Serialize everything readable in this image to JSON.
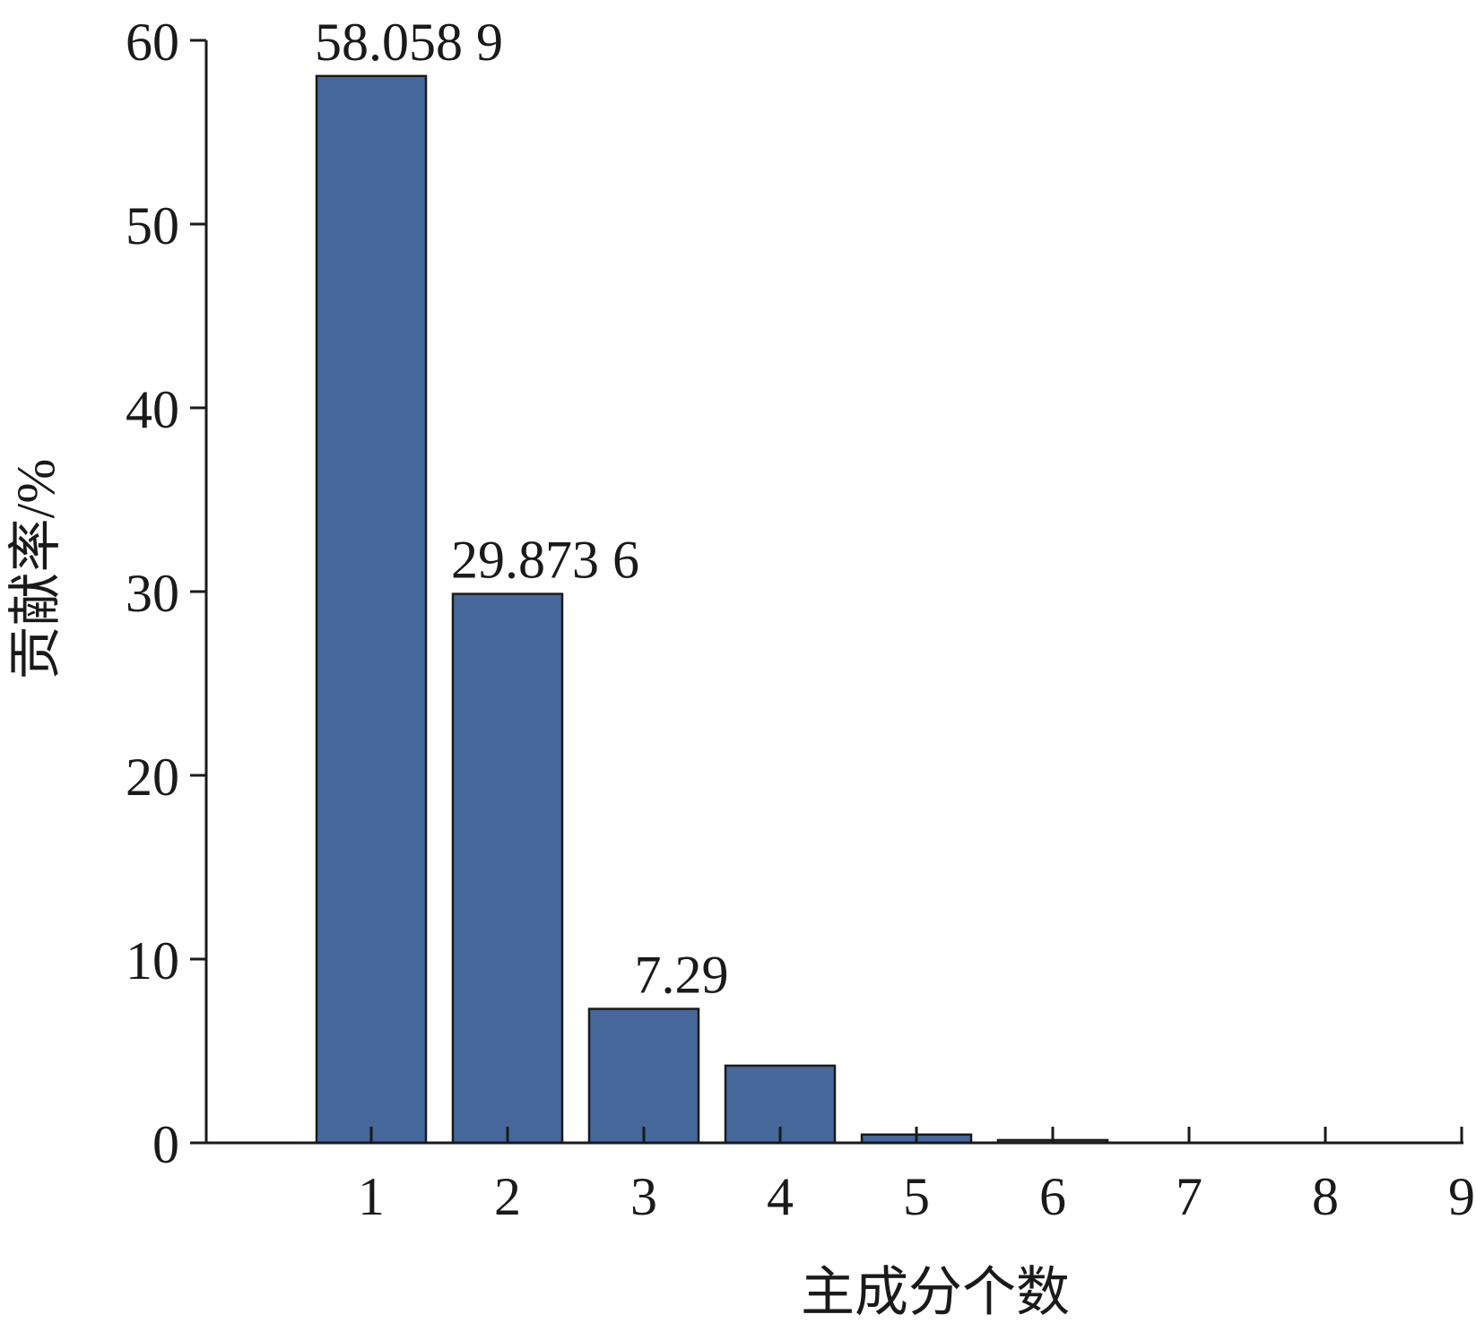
{
  "chart_data": {
    "type": "bar",
    "categories": [
      "1",
      "2",
      "3",
      "4",
      "5",
      "6",
      "7",
      "8",
      "9"
    ],
    "values": [
      58.0589,
      29.8736,
      7.29,
      4.2,
      0.45,
      0.15,
      0.0,
      0.0,
      0.0
    ],
    "data_labels": [
      "58.058 9",
      "29.873 6",
      "7.29",
      "",
      "",
      "",
      "",
      "",
      ""
    ],
    "xlabel": "主成分个数",
    "ylabel": "贡献率/%",
    "ylim": [
      0,
      60
    ],
    "yticks": [
      "0",
      "10",
      "20",
      "30",
      "40",
      "50",
      "60"
    ],
    "grid": false,
    "legend": "none",
    "bar_color": "#46689b",
    "edge_color": "#1a1a1a"
  }
}
